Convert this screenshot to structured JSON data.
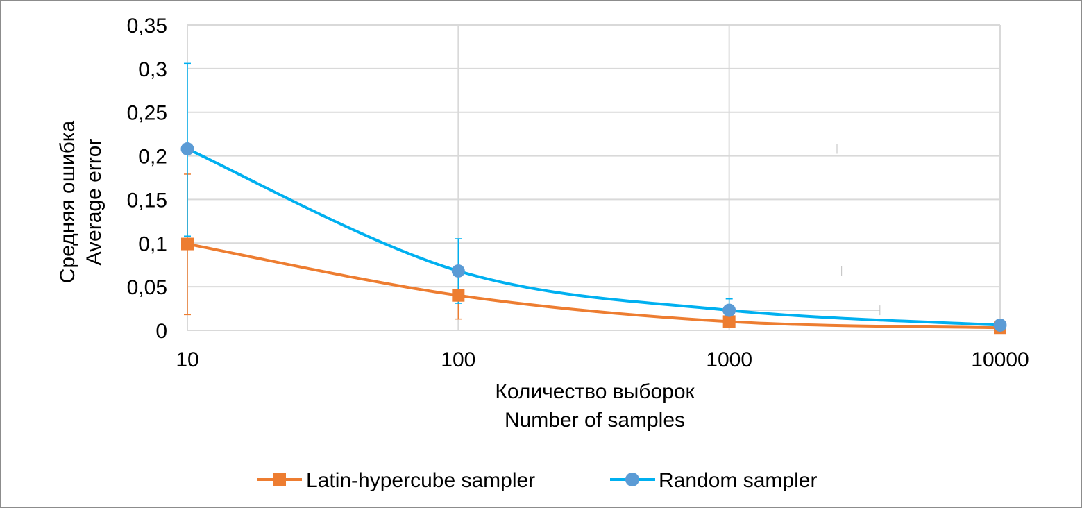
{
  "chart_data": {
    "type": "line",
    "x_scale": "log",
    "x": [
      10,
      100,
      1000,
      10000
    ],
    "x_tick_labels": [
      "10",
      "100",
      "1000",
      "10000"
    ],
    "y_tick_labels": [
      "0",
      "0,05",
      "0,1",
      "0,15",
      "0,2",
      "0,25",
      "0,3",
      "0,35"
    ],
    "ylim": [
      0,
      0.35
    ],
    "xlabel_lines": [
      "Количество выборок",
      "Number of samples"
    ],
    "ylabel_lines": [
      "Средняя ошибка",
      "Average error"
    ],
    "grid": true,
    "smooth": true,
    "legend_position": "bottom",
    "series": [
      {
        "name": "Latin-hypercube sampler",
        "color": "#ED7D31",
        "marker": "square",
        "values": [
          0.099,
          0.04,
          0.01,
          0.003
        ],
        "y_error_low": [
          0.018,
          0.013,
          0.008,
          0.003
        ],
        "y_error_high": [
          0.179,
          0.067,
          0.011,
          0.003
        ],
        "x_error_high": [
          null,
          null,
          null,
          null
        ]
      },
      {
        "name": "Random sampler",
        "color": "#00B0F0",
        "marker_color": "#5B9BD5",
        "marker": "circle",
        "values": [
          0.208,
          0.068,
          0.023,
          0.006
        ],
        "y_error_low": [
          0.108,
          0.031,
          0.01,
          0.005
        ],
        "y_error_high": [
          0.306,
          0.105,
          0.036,
          0.008
        ],
        "x_error_high": [
          2500,
          2600,
          3600,
          null
        ]
      }
    ]
  }
}
